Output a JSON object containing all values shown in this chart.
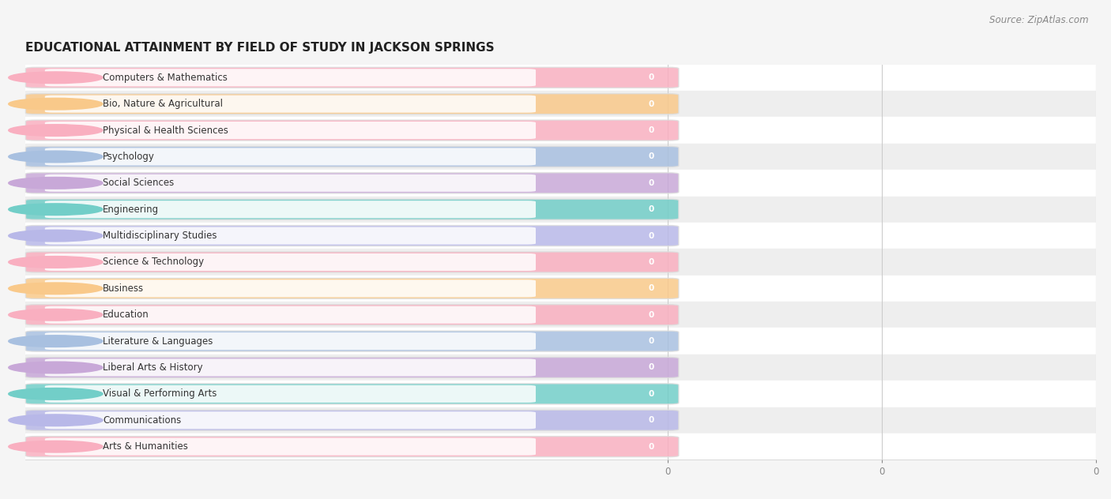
{
  "title": "EDUCATIONAL ATTAINMENT BY FIELD OF STUDY IN JACKSON SPRINGS",
  "source": "Source: ZipAtlas.com",
  "categories": [
    "Computers & Mathematics",
    "Bio, Nature & Agricultural",
    "Physical & Health Sciences",
    "Psychology",
    "Social Sciences",
    "Engineering",
    "Multidisciplinary Studies",
    "Science & Technology",
    "Business",
    "Education",
    "Literature & Languages",
    "Liberal Arts & History",
    "Visual & Performing Arts",
    "Communications",
    "Arts & Humanities"
  ],
  "values": [
    0,
    0,
    0,
    0,
    0,
    0,
    0,
    0,
    0,
    0,
    0,
    0,
    0,
    0,
    0
  ],
  "bar_colors": [
    "#f9afc0",
    "#f9c98a",
    "#f9afc0",
    "#a8c0e0",
    "#c8a8d8",
    "#72cec8",
    "#b8b8e8",
    "#f9afc0",
    "#f9c98a",
    "#f9afc0",
    "#a8c0e0",
    "#c8a8d8",
    "#72cec8",
    "#b8b8e8",
    "#f9afc0"
  ],
  "row_light": "#ffffff",
  "row_dark": "#eeeeee",
  "bg_color": "#f5f5f5",
  "grid_color": "#cccccc",
  "title_color": "#222222",
  "source_color": "#888888",
  "label_color": "#333333",
  "value_color": "#ffffff",
  "title_fontsize": 11,
  "label_fontsize": 8.5,
  "value_fontsize": 7.5,
  "source_fontsize": 8.5,
  "tick_fontsize": 8.5,
  "xticks": [
    0,
    0,
    0
  ],
  "xlim_data_max": 2.0
}
